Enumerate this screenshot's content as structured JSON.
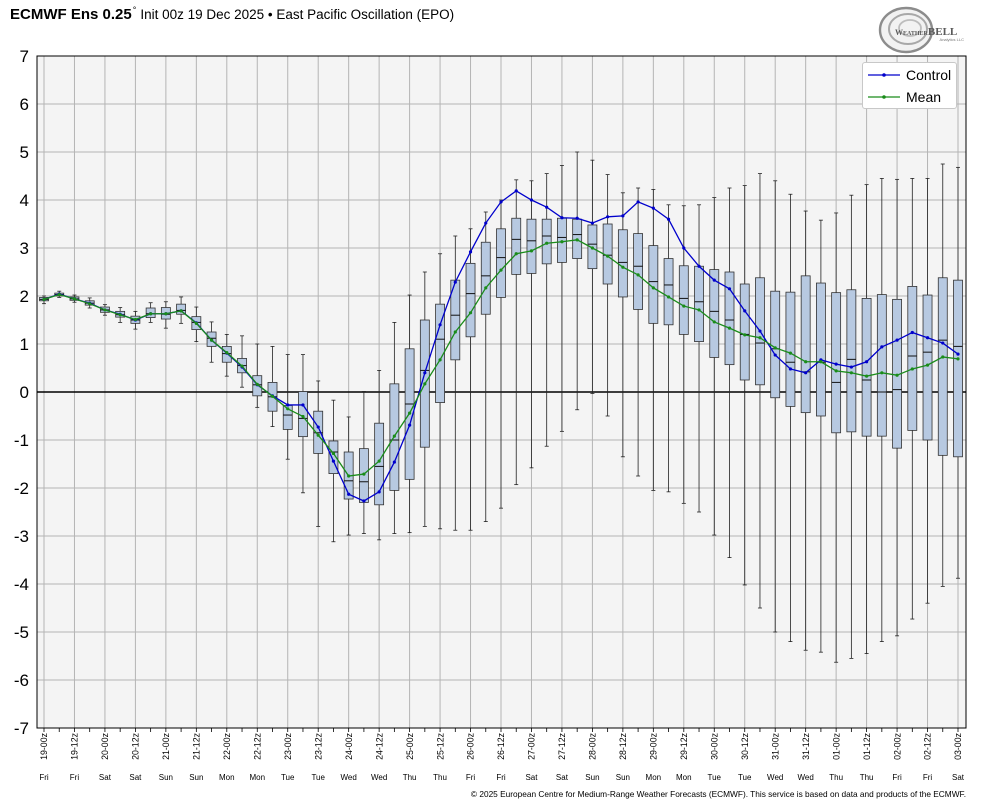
{
  "chart_data": {
    "type": "line",
    "title": {
      "bold": "ECMWF Ens 0.25",
      "degree": "°",
      "text": "Init 00z 19 Dec 2025 • East Pacific Oscillation (EPO)"
    },
    "x": [
      "19-00z",
      "19-06z",
      "19-12z",
      "19-18z",
      "20-00z",
      "20-06z",
      "20-12z",
      "20-18z",
      "21-00z",
      "21-06z",
      "21-12z",
      "21-18z",
      "22-00z",
      "22-06z",
      "22-12z",
      "22-18z",
      "23-00z",
      "23-06z",
      "23-12z",
      "23-18z",
      "24-00z",
      "24-06z",
      "24-12z",
      "24-18z",
      "25-00z",
      "25-06z",
      "25-12z",
      "25-18z",
      "26-00z",
      "26-06z",
      "26-12z",
      "26-18z",
      "27-00z",
      "27-06z",
      "27-12z",
      "27-18z",
      "28-00z",
      "28-06z",
      "28-12z",
      "28-18z",
      "29-00z",
      "29-06z",
      "29-12z",
      "29-18z",
      "30-00z",
      "30-06z",
      "30-12z",
      "30-18z",
      "31-00z",
      "31-06z",
      "31-12z",
      "31-18z",
      "01-00z",
      "01-06z",
      "01-12z",
      "01-18z",
      "02-00z",
      "02-06z",
      "02-12z",
      "02-18z",
      "03-00z"
    ],
    "x_ticks": [
      {
        "label": "19-00z",
        "day": "Fri"
      },
      {
        "label": "19-12z",
        "day": "Fri"
      },
      {
        "label": "20-00z",
        "day": "Sat"
      },
      {
        "label": "20-12z",
        "day": "Sat"
      },
      {
        "label": "21-00z",
        "day": "Sun"
      },
      {
        "label": "21-12z",
        "day": "Sun"
      },
      {
        "label": "22-00z",
        "day": "Mon"
      },
      {
        "label": "22-12z",
        "day": "Mon"
      },
      {
        "label": "23-00z",
        "day": "Tue"
      },
      {
        "label": "23-12z",
        "day": "Tue"
      },
      {
        "label": "24-00z",
        "day": "Wed"
      },
      {
        "label": "24-12z",
        "day": "Wed"
      },
      {
        "label": "25-00z",
        "day": "Thu"
      },
      {
        "label": "25-12z",
        "day": "Thu"
      },
      {
        "label": "26-00z",
        "day": "Fri"
      },
      {
        "label": "26-12z",
        "day": "Fri"
      },
      {
        "label": "27-00z",
        "day": "Sat"
      },
      {
        "label": "27-12z",
        "day": "Sat"
      },
      {
        "label": "28-00z",
        "day": "Sun"
      },
      {
        "label": "28-12z",
        "day": "Sun"
      },
      {
        "label": "29-00z",
        "day": "Mon"
      },
      {
        "label": "29-12z",
        "day": "Mon"
      },
      {
        "label": "30-00z",
        "day": "Tue"
      },
      {
        "label": "30-12z",
        "day": "Tue"
      },
      {
        "label": "31-00z",
        "day": "Wed"
      },
      {
        "label": "31-12z",
        "day": "Wed"
      },
      {
        "label": "01-00z",
        "day": "Thu"
      },
      {
        "label": "01-12z",
        "day": "Thu"
      },
      {
        "label": "02-00z",
        "day": "Fri"
      },
      {
        "label": "02-12z",
        "day": "Fri"
      },
      {
        "label": "03-00z",
        "day": "Sat"
      }
    ],
    "ylim": [
      -7,
      7
    ],
    "y_ticks": [
      7,
      6,
      5,
      4,
      3,
      2,
      1,
      0,
      -1,
      -2,
      -3,
      -4,
      -5,
      -6,
      -7
    ],
    "grid": true,
    "zero_line": true,
    "legend_position": "top-right",
    "series": [
      {
        "name": "Control",
        "color": "#0000cc",
        "values": [
          1.93,
          2.04,
          1.94,
          1.85,
          1.71,
          1.62,
          1.5,
          1.63,
          1.63,
          1.69,
          1.44,
          1.08,
          0.81,
          0.52,
          0.15,
          -0.08,
          -0.27,
          -0.27,
          -0.73,
          -1.44,
          -2.13,
          -2.27,
          -2.08,
          -1.46,
          -0.69,
          0.4,
          1.4,
          2.29,
          2.92,
          3.52,
          3.96,
          4.19,
          4.0,
          3.85,
          3.63,
          3.62,
          3.52,
          3.65,
          3.67,
          3.96,
          3.83,
          3.6,
          3.0,
          2.62,
          2.33,
          2.15,
          1.69,
          1.27,
          0.77,
          0.48,
          0.4,
          0.67,
          0.58,
          0.52,
          0.63,
          0.94,
          1.08,
          1.24,
          1.13,
          1.02,
          0.79
        ]
      },
      {
        "name": "Mean",
        "color": "#1a8c1a",
        "values": [
          1.93,
          2.03,
          1.94,
          1.84,
          1.71,
          1.61,
          1.51,
          1.63,
          1.63,
          1.69,
          1.43,
          1.08,
          0.82,
          0.54,
          0.16,
          -0.09,
          -0.35,
          -0.51,
          -0.9,
          -1.28,
          -1.75,
          -1.71,
          -1.44,
          -0.92,
          -0.44,
          0.17,
          0.67,
          1.25,
          1.65,
          2.17,
          2.54,
          2.88,
          2.94,
          3.1,
          3.13,
          3.17,
          3.0,
          2.83,
          2.6,
          2.44,
          2.17,
          1.98,
          1.79,
          1.71,
          1.46,
          1.33,
          1.19,
          1.13,
          0.92,
          0.81,
          0.63,
          0.63,
          0.44,
          0.4,
          0.33,
          0.4,
          0.35,
          0.48,
          0.56,
          0.73,
          0.69
        ]
      }
    ],
    "boxes": {
      "fill": "#b7c9e1",
      "stroke": "#333333",
      "min": [
        1.84,
        1.97,
        1.87,
        1.75,
        1.6,
        1.45,
        1.31,
        1.45,
        1.33,
        1.43,
        1.05,
        0.62,
        0.33,
        0.1,
        -0.32,
        -0.72,
        -1.4,
        -2.1,
        -2.8,
        -3.12,
        -2.98,
        -2.95,
        -3.08,
        -2.95,
        -2.93,
        -2.8,
        -2.85,
        -2.88,
        -2.88,
        -2.7,
        -2.42,
        -1.93,
        -1.58,
        -1.13,
        -0.82,
        -0.37,
        -0.03,
        -0.5,
        -1.35,
        -1.75,
        -2.05,
        -2.08,
        -2.32,
        -2.5,
        -2.98,
        -3.45,
        -4.02,
        -4.5,
        -5.0,
        -5.2,
        -5.38,
        -5.42,
        -5.63,
        -5.55,
        -5.45,
        -5.2,
        -5.08,
        -4.73,
        -4.4,
        -4.05,
        -3.88
      ],
      "q1": [
        1.9,
        2.0,
        1.91,
        1.81,
        1.66,
        1.56,
        1.43,
        1.55,
        1.52,
        1.62,
        1.3,
        0.95,
        0.62,
        0.4,
        -0.08,
        -0.4,
        -0.78,
        -0.93,
        -1.28,
        -1.7,
        -2.23,
        -2.3,
        -2.35,
        -2.05,
        -1.82,
        -1.15,
        -0.22,
        0.67,
        1.15,
        1.62,
        1.97,
        2.45,
        2.47,
        2.67,
        2.7,
        2.78,
        2.57,
        2.25,
        1.98,
        1.72,
        1.43,
        1.4,
        1.2,
        1.05,
        0.72,
        0.57,
        0.25,
        0.15,
        -0.12,
        -0.3,
        -0.43,
        -0.5,
        -0.85,
        -0.83,
        -0.92,
        -0.92,
        -1.17,
        -0.8,
        -1.0,
        -1.32,
        -1.35
      ],
      "median": [
        1.93,
        2.03,
        1.94,
        1.85,
        1.71,
        1.61,
        1.5,
        1.63,
        1.62,
        1.7,
        1.45,
        1.12,
        0.8,
        0.55,
        0.15,
        -0.1,
        -0.48,
        -0.55,
        -0.85,
        -1.25,
        -1.85,
        -1.87,
        -1.55,
        -1.0,
        -0.25,
        0.45,
        1.1,
        1.6,
        2.05,
        2.42,
        2.8,
        3.18,
        3.15,
        3.25,
        3.22,
        3.28,
        3.08,
        2.85,
        2.7,
        2.62,
        2.3,
        2.23,
        1.95,
        1.88,
        1.68,
        1.5,
        1.2,
        1.02,
        0.9,
        0.62,
        0.42,
        0.62,
        0.2,
        0.68,
        0.25,
        0.0,
        0.05,
        0.75,
        0.83,
        1.08,
        0.95
      ],
      "q3": [
        1.97,
        2.06,
        1.98,
        1.9,
        1.77,
        1.68,
        1.58,
        1.75,
        1.76,
        1.83,
        1.57,
        1.25,
        0.95,
        0.7,
        0.34,
        0.2,
        -0.28,
        0.01,
        -0.4,
        -1.02,
        -1.25,
        -1.18,
        -0.65,
        0.17,
        0.9,
        1.5,
        1.83,
        2.33,
        2.68,
        3.12,
        3.4,
        3.62,
        3.6,
        3.6,
        3.62,
        3.6,
        3.48,
        3.5,
        3.38,
        3.3,
        3.05,
        2.78,
        2.63,
        2.62,
        2.55,
        2.5,
        2.25,
        2.38,
        2.1,
        2.08,
        2.42,
        2.27,
        2.07,
        2.13,
        1.95,
        2.03,
        1.93,
        2.2,
        2.02,
        2.38,
        2.33
      ],
      "max": [
        2.0,
        2.1,
        2.02,
        1.96,
        1.82,
        1.76,
        1.68,
        1.86,
        1.88,
        1.98,
        1.77,
        1.46,
        1.2,
        1.17,
        1.0,
        0.95,
        0.78,
        0.78,
        0.23,
        -0.17,
        -0.52,
        0.01,
        0.45,
        1.45,
        2.02,
        2.5,
        2.88,
        3.25,
        3.4,
        3.75,
        4.0,
        4.42,
        4.4,
        4.55,
        4.72,
        5.0,
        4.83,
        4.53,
        4.15,
        4.25,
        4.22,
        3.9,
        3.88,
        3.9,
        4.05,
        4.25,
        4.3,
        4.55,
        4.4,
        4.12,
        3.77,
        3.58,
        3.73,
        4.1,
        4.32,
        4.45,
        4.43,
        4.45,
        4.45,
        4.75,
        4.68
      ]
    },
    "colors": {
      "plot_background": "#f4f4f4",
      "gridline": "#b4b4b4",
      "zero_line": "#000000"
    }
  },
  "logo": {
    "name_part1": "Weather",
    "name_part2": "BELL",
    "tagline": "Analytics LLC"
  },
  "footer": {
    "credit": "© 2025 European Centre for Medium-Range Weather Forecasts (ECMWF). This service is based on data and products of the ECMWF."
  }
}
